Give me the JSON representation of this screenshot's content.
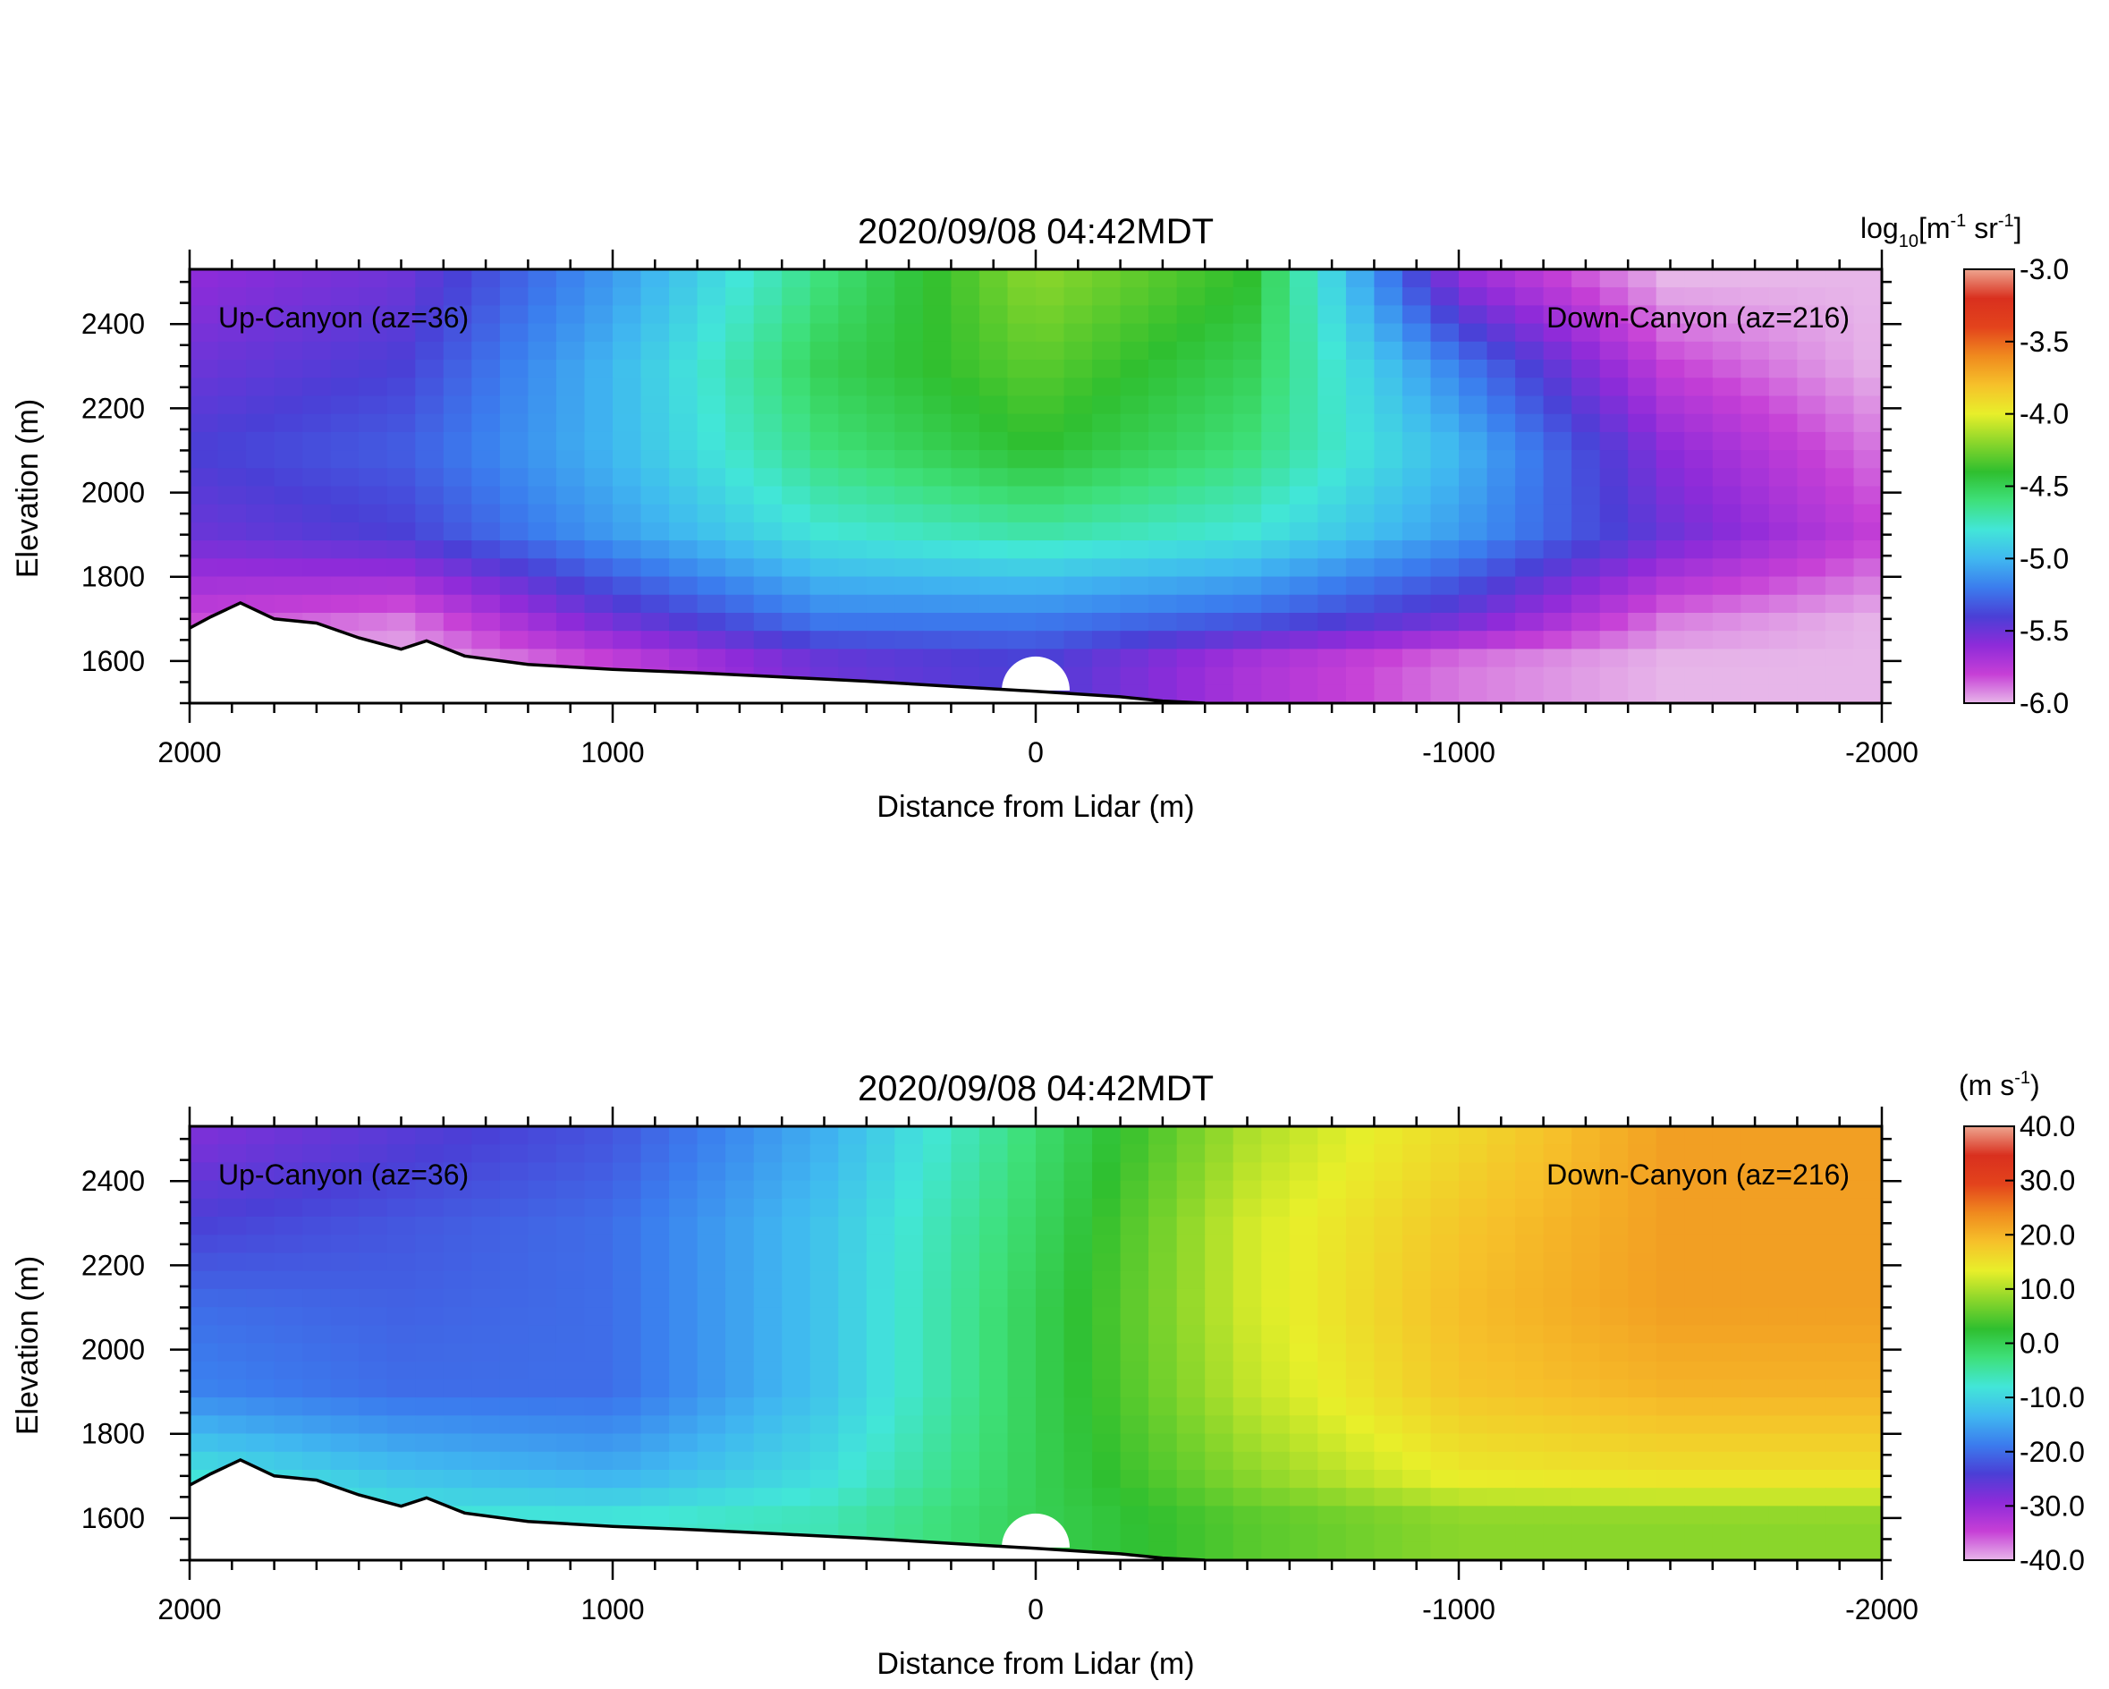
{
  "colors": {
    "scale": [
      "#e7b6e9",
      "#c63fd6",
      "#8e2bd9",
      "#4a3fd6",
      "#3b7dee",
      "#40b8f0",
      "#42e6d8",
      "#3ee07a",
      "#2fbf2f",
      "#8ad62b",
      "#e8ef2a",
      "#f6c12a",
      "#f08a1e",
      "#e3431c",
      "#d9301e",
      "#eea58f"
    ],
    "terrain_line": "#000000",
    "background": "#ffffff"
  },
  "chart_data": [
    {
      "type": "heatmap",
      "panel": "top",
      "title": "2020/09/08 04:42MDT",
      "xlabel": "Distance from Lidar (m)",
      "ylabel": "Elevation (m)",
      "xlim": [
        2000,
        -2000
      ],
      "ylim": [
        1500,
        2530
      ],
      "xticks": [
        2000,
        1000,
        0,
        -1000,
        -2000
      ],
      "xtick_labels": [
        "2000",
        "1000",
        "0",
        "-1000",
        "-2000"
      ],
      "yticks": [
        1600,
        1800,
        2000,
        2200,
        2400
      ],
      "ytick_labels": [
        "1600",
        "1800",
        "2000",
        "2200",
        "2400"
      ],
      "left_annotation": "Up-Canyon (az=36)",
      "right_annotation": "Down-Canyon (az=216)",
      "colorbar": {
        "unit_parts": {
          "a": "log",
          "b": "10",
          "c": "[m",
          "d": "-1",
          "e": " sr",
          "f": "-1",
          "g": "]"
        },
        "range": [
          -6.0,
          -3.0
        ],
        "ticks": [
          -3.0,
          -3.5,
          -4.0,
          -4.5,
          -5.0,
          -5.5,
          -6.0
        ],
        "tick_labels": [
          "-3.0",
          "-3.5",
          "-4.0",
          "-4.5",
          "-5.0",
          "-5.5",
          "-6.0"
        ]
      },
      "field": {
        "x": [
          2000,
          1500,
          1000,
          500,
          0,
          -500,
          -1000,
          -1500,
          -2000
        ],
        "y": [
          2500,
          2300,
          2100,
          1900,
          1700,
          1600
        ],
        "z": [
          [
            -5.6,
            -5.5,
            -5.1,
            -4.6,
            -4.2,
            -4.4,
            -5.6,
            -6.0,
            -6.0
          ],
          [
            -5.5,
            -5.4,
            -5.0,
            -4.5,
            -4.3,
            -4.5,
            -5.2,
            -5.8,
            -6.0
          ],
          [
            -5.4,
            -5.3,
            -5.0,
            -4.6,
            -4.4,
            -4.6,
            -5.0,
            -5.6,
            -5.9
          ],
          [
            -5.5,
            -5.4,
            -5.1,
            -4.8,
            -4.7,
            -4.8,
            -5.1,
            -5.5,
            -5.8
          ],
          [
            -5.8,
            -5.9,
            -5.5,
            -5.2,
            -5.2,
            -5.3,
            -5.5,
            -5.9,
            -6.0
          ],
          [
            -6.0,
            -6.0,
            -5.8,
            -5.5,
            -5.4,
            -5.7,
            -5.9,
            -6.0,
            -6.0
          ]
        ]
      }
    },
    {
      "type": "heatmap",
      "panel": "bottom",
      "title": "2020/09/08 04:42MDT",
      "xlabel": "Distance from Lidar (m)",
      "ylabel": "Elevation (m)",
      "xlim": [
        2000,
        -2000
      ],
      "ylim": [
        1500,
        2530
      ],
      "xticks": [
        2000,
        1000,
        0,
        -1000,
        -2000
      ],
      "xtick_labels": [
        "2000",
        "1000",
        "0",
        "-1000",
        "-2000"
      ],
      "yticks": [
        1600,
        1800,
        2000,
        2200,
        2400
      ],
      "ytick_labels": [
        "1600",
        "1800",
        "2000",
        "2200",
        "2400"
      ],
      "left_annotation": "Up-Canyon (az=36)",
      "right_annotation": "Down-Canyon (az=216)",
      "colorbar": {
        "unit_parts": {
          "a": "(m s",
          "b": "-1",
          "c": ")"
        },
        "range": [
          -40.0,
          40.0
        ],
        "ticks": [
          40.0,
          30.0,
          20.0,
          10.0,
          0.0,
          -10.0,
          -20.0,
          -30.0,
          -40.0
        ],
        "tick_labels": [
          "40.0",
          "30.0",
          "20.0",
          "10.0",
          "0.0",
          "-10.0",
          "-20.0",
          "-30.0",
          "-40.0"
        ]
      },
      "field": {
        "x": [
          2000,
          1500,
          1000,
          500,
          0,
          -500,
          -1000,
          -1500,
          -2000
        ],
        "y": [
          2500,
          2300,
          2100,
          1900,
          1700,
          1600
        ],
        "z": [
          [
            -28,
            -25,
            -22,
            -14,
            -2,
            10,
            16,
            22,
            22
          ],
          [
            -24,
            -22,
            -20,
            -12,
            -1,
            12,
            18,
            22,
            22
          ],
          [
            -20,
            -21,
            -20,
            -12,
            0,
            12,
            19,
            22,
            22
          ],
          [
            -18,
            -20,
            -20,
            -12,
            0,
            11,
            18,
            20,
            20
          ],
          [
            -8,
            -12,
            -14,
            -9,
            0,
            8,
            14,
            15,
            15
          ],
          [
            -6,
            -8,
            -8,
            -6,
            0,
            5,
            8,
            8,
            8
          ]
        ]
      }
    }
  ]
}
